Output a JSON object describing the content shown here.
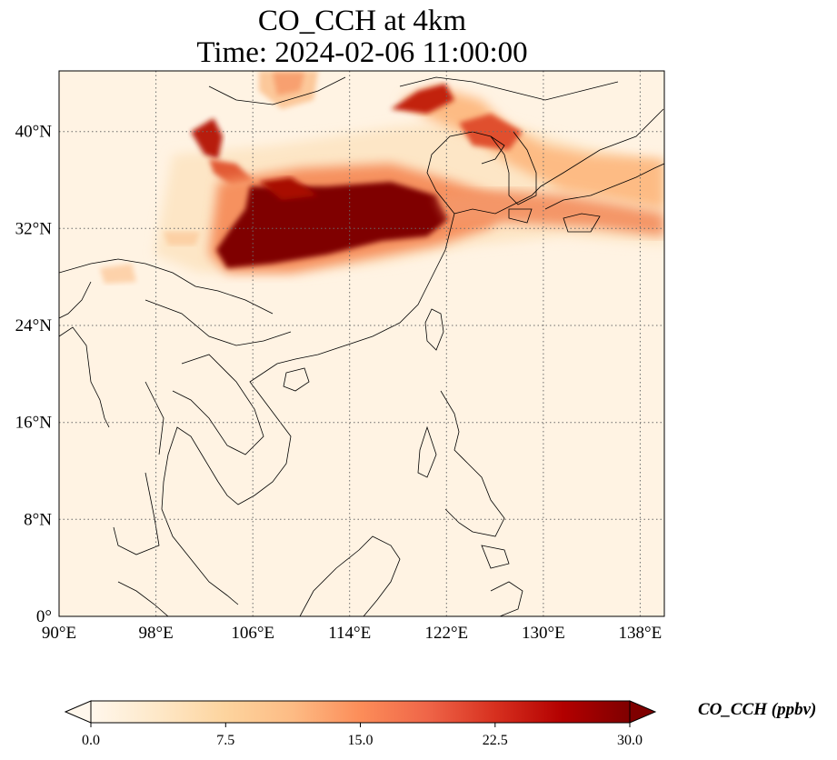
{
  "title": {
    "line1": "CO_CCH at 4km",
    "line2": "Time: 2024-02-06 11:00:00"
  },
  "map": {
    "projection": "PlateCarree",
    "lon_range": [
      90,
      140
    ],
    "lat_range": [
      0,
      44
    ],
    "lon_ticks": [
      "90°E",
      "98°E",
      "106°E",
      "114°E",
      "122°E",
      "130°E",
      "138°E"
    ],
    "lat_ticks": [
      "0°",
      "8°N",
      "16°N",
      "24°N",
      "32°N",
      "40°N"
    ],
    "gridlines": "dotted",
    "colormap": "OrRd"
  },
  "colorbar": {
    "label": "CO_CCH (ppbv)",
    "ticks": [
      "0.0",
      "7.5",
      "15.0",
      "22.5",
      "30.0"
    ],
    "min": 0.0,
    "max": 30.0,
    "extend": "both",
    "colors": [
      "#fff7ec",
      "#fee8c8",
      "#fdd49e",
      "#fdbb84",
      "#fc8d59",
      "#ef6548",
      "#d7301f",
      "#b30000",
      "#7f0000"
    ]
  }
}
